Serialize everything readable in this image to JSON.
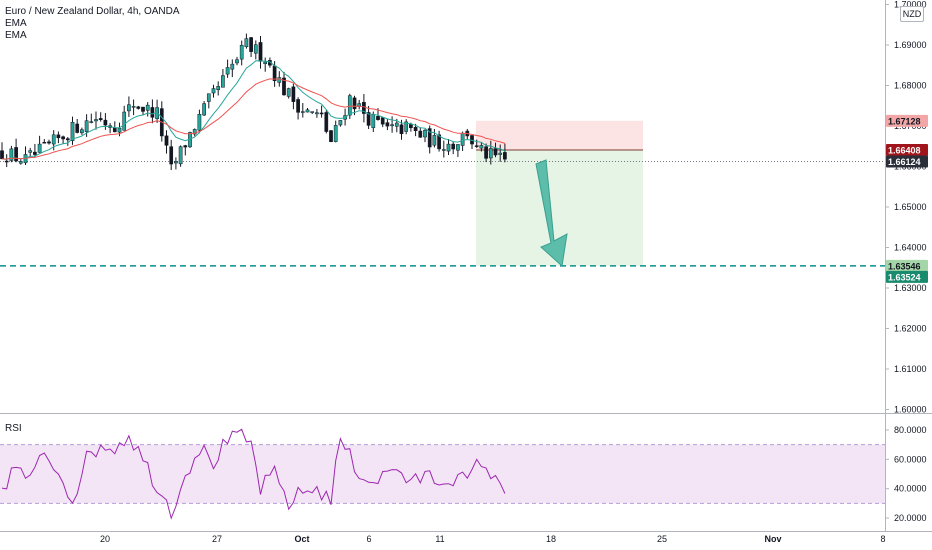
{
  "legend": {
    "title": "Euro / New Zealand Dollar, 4h, OANDA",
    "ema1": "EMA",
    "ema2": "EMA"
  },
  "currency_badge": "NZD",
  "rsi_label": "RSI",
  "colors": {
    "up": "#26a69a",
    "down": "#ef5350",
    "candle_dark": "#131722",
    "ema_fast": "#26a69a",
    "ema_slow": "#ef5350",
    "rsi_line": "#9c27b0",
    "rsi_band": "#f3e5f5",
    "stop_zone": "#fde4e4",
    "target_zone": "#e6f4e6",
    "target_line": "#0a8f8a",
    "arrow": "#4bb7a3",
    "tag_stop": "#f3a6a6",
    "tag_entry": "#a0151c",
    "tag_last": "#2a2e39",
    "tag_target_light": "#a5d6a7",
    "tag_target": "#1a8a6e"
  },
  "chart_data": [
    {
      "type": "candlestick",
      "title": "Euro / New Zealand Dollar, 4h, OANDA",
      "ylim": [
        1.6,
        1.7
      ],
      "y_ticks": [
        "1.70000",
        "1.69000",
        "1.68000",
        "1.67000",
        "1.66000",
        "1.65000",
        "1.64000",
        "1.63000",
        "1.62000",
        "1.61000",
        "1.60000"
      ],
      "x_ticks": [
        "20",
        "27",
        "Oct",
        "6",
        "11",
        "18",
        "25",
        "Nov",
        "8"
      ],
      "series": [
        {
          "name": "EMA",
          "type": "line"
        },
        {
          "name": "EMA",
          "type": "line"
        }
      ],
      "close_path": [
        [
          0,
          1.6635
        ],
        [
          5,
          1.6615
        ],
        [
          10,
          1.665
        ],
        [
          16,
          1.67
        ],
        [
          20,
          1.672
        ],
        [
          24,
          1.67
        ],
        [
          28,
          1.6755
        ],
        [
          33,
          1.673
        ],
        [
          36,
          1.659
        ],
        [
          40,
          1.668
        ],
        [
          44,
          1.676
        ],
        [
          48,
          1.683
        ],
        [
          52,
          1.69
        ],
        [
          56,
          1.687
        ],
        [
          60,
          1.679
        ],
        [
          64,
          1.674
        ],
        [
          68,
          1.672
        ],
        [
          70,
          1.666
        ],
        [
          74,
          1.677
        ],
        [
          78,
          1.672
        ],
        [
          82,
          1.669
        ],
        [
          86,
          1.6695
        ],
        [
          92,
          1.666
        ],
        [
          96,
          1.6655
        ],
        [
          99,
          1.6685
        ],
        [
          101,
          1.664
        ],
        [
          104,
          1.6625
        ],
        [
          107,
          1.66124
        ]
      ],
      "price_tags": [
        {
          "label": "stop",
          "value": "1.67128"
        },
        {
          "label": "entry",
          "value": "1.66408"
        },
        {
          "label": "last",
          "value": "1.66124"
        },
        {
          "label": "target",
          "value": "1.63546"
        },
        {
          "label": "target2",
          "value": "1.63524"
        }
      ],
      "position": {
        "direction": "short",
        "entry": 1.66408,
        "stop": 1.67128,
        "target": 1.63546
      }
    },
    {
      "type": "line",
      "title": "RSI",
      "ylim": [
        15,
        85
      ],
      "y_ticks": [
        "80.0000",
        "60.0000",
        "40.0000",
        "20.0000"
      ],
      "band": [
        30,
        70
      ],
      "path": [
        [
          0,
          40
        ],
        [
          3,
          55
        ],
        [
          6,
          45
        ],
        [
          9,
          65
        ],
        [
          12,
          52
        ],
        [
          15,
          33
        ],
        [
          18,
          60
        ],
        [
          21,
          70
        ],
        [
          24,
          68
        ],
        [
          27,
          77
        ],
        [
          30,
          60
        ],
        [
          33,
          42
        ],
        [
          36,
          25
        ],
        [
          39,
          50
        ],
        [
          42,
          68
        ],
        [
          45,
          58
        ],
        [
          48,
          73
        ],
        [
          51,
          75
        ],
        [
          53,
          70
        ],
        [
          55,
          40
        ],
        [
          58,
          50
        ],
        [
          61,
          30
        ],
        [
          64,
          38
        ],
        [
          67,
          40
        ],
        [
          70,
          33
        ],
        [
          72,
          75
        ],
        [
          75,
          55
        ],
        [
          78,
          45
        ],
        [
          81,
          48
        ],
        [
          84,
          55
        ],
        [
          87,
          42
        ],
        [
          90,
          50
        ],
        [
          93,
          45
        ],
        [
          96,
          48
        ],
        [
          99,
          45
        ],
        [
          102,
          60
        ],
        [
          105,
          44
        ],
        [
          107,
          40
        ]
      ]
    }
  ]
}
